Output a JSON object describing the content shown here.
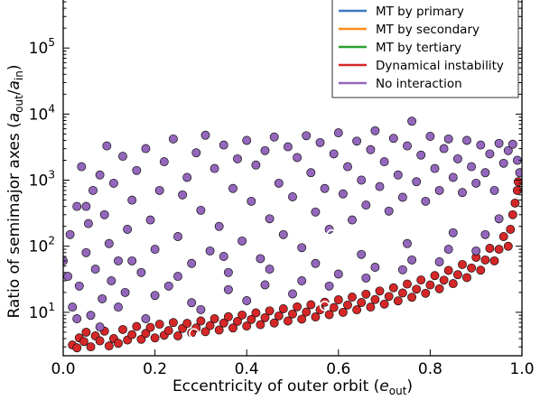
{
  "chart_data": {
    "type": "scatter",
    "title": "",
    "xlabel": "Eccentricity of outer orbit (e_out)",
    "xlabel_text": "Eccentricity of outer orbit (",
    "xlabel_var": "e",
    "xlabel_sub": "out",
    "xlabel_close": ")",
    "ylabel": "Ratio of semimajor axes (a_out/a_in)",
    "ylabel_text": "Ratio of semimajor axes (",
    "ylabel_var": "a",
    "ylabel_sub1": "out",
    "ylabel_slash": "/",
    "ylabel_sub2": "in",
    "ylabel_close": ")",
    "xlim": [
      0.0,
      1.0
    ],
    "ylim": [
      2.2,
      1000000
    ],
    "yscale": "log",
    "xticks": [
      {
        "value": 0.0,
        "label": "0.0"
      },
      {
        "value": 0.2,
        "label": "0.2"
      },
      {
        "value": 0.4,
        "label": "0.4"
      },
      {
        "value": 0.6,
        "label": "0.6"
      },
      {
        "value": 0.8,
        "label": "0.8"
      },
      {
        "value": 1.0,
        "label": "1.0"
      }
    ],
    "yticks": [
      {
        "value": 10,
        "base": "10",
        "exp": "1"
      },
      {
        "value": 100,
        "base": "10",
        "exp": "2"
      },
      {
        "value": 1000,
        "base": "10",
        "exp": "3"
      },
      {
        "value": 10000,
        "base": "10",
        "exp": "4"
      },
      {
        "value": 100000,
        "base": "10",
        "exp": "5"
      }
    ],
    "grid": false,
    "legend_position": "top-right",
    "series": [
      {
        "name": "MT by primary",
        "color": "#3a75c4",
        "points": []
      },
      {
        "name": "MT by secondary",
        "color": "#ff8c1a",
        "points": []
      },
      {
        "name": "MT by tertiary",
        "color": "#2ca02c",
        "points": []
      },
      {
        "name": "Dynamical instability",
        "color": "#d62728",
        "points": [
          [
            0.02,
            3.2
          ],
          [
            0.03,
            2.9
          ],
          [
            0.035,
            4.1
          ],
          [
            0.045,
            3.6
          ],
          [
            0.05,
            5.0
          ],
          [
            0.06,
            3.0
          ],
          [
            0.07,
            4.4
          ],
          [
            0.08,
            3.7
          ],
          [
            0.09,
            5.2
          ],
          [
            0.1,
            3.1
          ],
          [
            0.11,
            4.0
          ],
          [
            0.12,
            3.4
          ],
          [
            0.13,
            5.5
          ],
          [
            0.14,
            3.8
          ],
          [
            0.15,
            4.6
          ],
          [
            0.16,
            6.1
          ],
          [
            0.17,
            3.9
          ],
          [
            0.18,
            4.8
          ],
          [
            0.19,
            5.9
          ],
          [
            0.2,
            4.1
          ],
          [
            0.21,
            6.6
          ],
          [
            0.22,
            4.5
          ],
          [
            0.23,
            5.3
          ],
          [
            0.24,
            7.0
          ],
          [
            0.25,
            4.4
          ],
          [
            0.26,
            5.7
          ],
          [
            0.27,
            6.8
          ],
          [
            0.28,
            4.9
          ],
          [
            0.29,
            5.8
          ],
          [
            0.3,
            7.4
          ],
          [
            0.31,
            5.1
          ],
          [
            0.32,
            6.3
          ],
          [
            0.33,
            8.0
          ],
          [
            0.34,
            5.4
          ],
          [
            0.35,
            6.9
          ],
          [
            0.36,
            8.6
          ],
          [
            0.37,
            5.8
          ],
          [
            0.38,
            7.3
          ],
          [
            0.39,
            9.1
          ],
          [
            0.4,
            6.2
          ],
          [
            0.41,
            7.8
          ],
          [
            0.42,
            9.8
          ],
          [
            0.43,
            6.5
          ],
          [
            0.44,
            8.3
          ],
          [
            0.45,
            10.5
          ],
          [
            0.46,
            6.9
          ],
          [
            0.47,
            8.8
          ],
          [
            0.48,
            11.3
          ],
          [
            0.49,
            7.4
          ],
          [
            0.5,
            9.4
          ],
          [
            0.51,
            12.1
          ],
          [
            0.52,
            7.9
          ],
          [
            0.53,
            10.1
          ],
          [
            0.54,
            13.0
          ],
          [
            0.55,
            8.5
          ],
          [
            0.56,
            10.9
          ],
          [
            0.57,
            14.2
          ],
          [
            0.58,
            9.2
          ],
          [
            0.59,
            11.8
          ],
          [
            0.6,
            15.5
          ],
          [
            0.61,
            10.0
          ],
          [
            0.62,
            12.9
          ],
          [
            0.63,
            17.0
          ],
          [
            0.64,
            10.9
          ],
          [
            0.65,
            14.1
          ],
          [
            0.66,
            18.8
          ],
          [
            0.67,
            12.0
          ],
          [
            0.68,
            15.6
          ],
          [
            0.69,
            21.0
          ],
          [
            0.7,
            13.3
          ],
          [
            0.71,
            17.4
          ],
          [
            0.72,
            23.5
          ],
          [
            0.73,
            14.9
          ],
          [
            0.74,
            19.6
          ],
          [
            0.75,
            26.8
          ],
          [
            0.76,
            16.9
          ],
          [
            0.77,
            22.4
          ],
          [
            0.78,
            30.8
          ],
          [
            0.79,
            19.4
          ],
          [
            0.8,
            25.9
          ],
          [
            0.81,
            36.0
          ],
          [
            0.82,
            22.7
          ],
          [
            0.83,
            30.6
          ],
          [
            0.84,
            43.0
          ],
          [
            0.85,
            27.2
          ],
          [
            0.86,
            37.1
          ],
          [
            0.87,
            53.0
          ],
          [
            0.88,
            33.6
          ],
          [
            0.89,
            46.8
          ],
          [
            0.9,
            68.0
          ],
          [
            0.91,
            43.4
          ],
          [
            0.92,
            62.0
          ],
          [
            0.93,
            93.0
          ],
          [
            0.94,
            60.0
          ],
          [
            0.95,
            90.0
          ],
          [
            0.96,
            140.0
          ],
          [
            0.97,
            100.0
          ],
          [
            0.975,
            180.0
          ],
          [
            0.98,
            300.0
          ],
          [
            0.985,
            450.0
          ],
          [
            0.99,
            700.0
          ],
          [
            0.992,
            950.0
          ]
        ]
      },
      {
        "name": "No interaction",
        "color": "#9467bd",
        "points": [
          [
            0.0,
            60
          ],
          [
            0.01,
            35
          ],
          [
            0.015,
            150
          ],
          [
            0.02,
            12
          ],
          [
            0.03,
            400
          ],
          [
            0.035,
            25
          ],
          [
            0.04,
            1600
          ],
          [
            0.05,
            80
          ],
          [
            0.055,
            220
          ],
          [
            0.06,
            9
          ],
          [
            0.065,
            700
          ],
          [
            0.07,
            45
          ],
          [
            0.08,
            1200
          ],
          [
            0.085,
            16
          ],
          [
            0.09,
            300
          ],
          [
            0.095,
            3300
          ],
          [
            0.1,
            110
          ],
          [
            0.105,
            30
          ],
          [
            0.11,
            900
          ],
          [
            0.12,
            60
          ],
          [
            0.13,
            2300
          ],
          [
            0.135,
            20
          ],
          [
            0.14,
            180
          ],
          [
            0.15,
            500
          ],
          [
            0.16,
            1400
          ],
          [
            0.17,
            40
          ],
          [
            0.18,
            3000
          ],
          [
            0.19,
            250
          ],
          [
            0.2,
            90
          ],
          [
            0.21,
            700
          ],
          [
            0.22,
            1900
          ],
          [
            0.23,
            25
          ],
          [
            0.24,
            4200
          ],
          [
            0.25,
            140
          ],
          [
            0.26,
            600
          ],
          [
            0.27,
            1100
          ],
          [
            0.28,
            55
          ],
          [
            0.29,
            2600
          ],
          [
            0.3,
            350
          ],
          [
            0.31,
            4800
          ],
          [
            0.32,
            85
          ],
          [
            0.33,
            1500
          ],
          [
            0.34,
            200
          ],
          [
            0.35,
            3400
          ],
          [
            0.36,
            40
          ],
          [
            0.37,
            750
          ],
          [
            0.38,
            2100
          ],
          [
            0.39,
            120
          ],
          [
            0.4,
            4000
          ],
          [
            0.41,
            480
          ],
          [
            0.42,
            1700
          ],
          [
            0.43,
            65
          ],
          [
            0.44,
            2800
          ],
          [
            0.45,
            260
          ],
          [
            0.46,
            4500
          ],
          [
            0.47,
            900
          ],
          [
            0.48,
            150
          ],
          [
            0.49,
            3200
          ],
          [
            0.5,
            560
          ],
          [
            0.51,
            2200
          ],
          [
            0.52,
            95
          ],
          [
            0.53,
            4700
          ],
          [
            0.54,
            1300
          ],
          [
            0.55,
            330
          ],
          [
            0.56,
            3700
          ],
          [
            0.57,
            750
          ],
          [
            0.58,
            180
          ],
          [
            0.59,
            2500
          ],
          [
            0.6,
            5200
          ],
          [
            0.61,
            620
          ],
          [
            0.62,
            1600
          ],
          [
            0.63,
            250
          ],
          [
            0.64,
            3900
          ],
          [
            0.65,
            1000
          ],
          [
            0.66,
            420
          ],
          [
            0.67,
            2900
          ],
          [
            0.68,
            5600
          ],
          [
            0.69,
            800
          ],
          [
            0.7,
            1900
          ],
          [
            0.71,
            340
          ],
          [
            0.72,
            4300
          ],
          [
            0.73,
            1200
          ],
          [
            0.74,
            550
          ],
          [
            0.75,
            3300
          ],
          [
            0.76,
            7800
          ],
          [
            0.77,
            950
          ],
          [
            0.78,
            2400
          ],
          [
            0.79,
            480
          ],
          [
            0.8,
            4600
          ],
          [
            0.81,
            1500
          ],
          [
            0.82,
            700
          ],
          [
            0.83,
            3000
          ],
          [
            0.84,
            4200
          ],
          [
            0.85,
            1100
          ],
          [
            0.86,
            2100
          ],
          [
            0.87,
            650
          ],
          [
            0.88,
            4000
          ],
          [
            0.89,
            1600
          ],
          [
            0.9,
            900
          ],
          [
            0.91,
            3400
          ],
          [
            0.92,
            1300
          ],
          [
            0.93,
            2500
          ],
          [
            0.94,
            700
          ],
          [
            0.95,
            3600
          ],
          [
            0.96,
            1800
          ],
          [
            0.97,
            2800
          ],
          [
            0.98,
            3500
          ],
          [
            0.99,
            2000
          ],
          [
            0.995,
            1300
          ],
          [
            0.03,
            8
          ],
          [
            0.12,
            12
          ],
          [
            0.2,
            18
          ],
          [
            0.28,
            14
          ],
          [
            0.36,
            22
          ],
          [
            0.44,
            26
          ],
          [
            0.52,
            30
          ],
          [
            0.6,
            38
          ],
          [
            0.68,
            48
          ],
          [
            0.76,
            62
          ],
          [
            0.84,
            90
          ],
          [
            0.92,
            150
          ],
          [
            0.05,
            400
          ],
          [
            0.15,
            60
          ],
          [
            0.25,
            35
          ],
          [
            0.35,
            70
          ],
          [
            0.45,
            45
          ],
          [
            0.55,
            55
          ],
          [
            0.65,
            75
          ],
          [
            0.75,
            110
          ],
          [
            0.85,
            160
          ],
          [
            0.95,
            260
          ],
          [
            0.08,
            6
          ],
          [
            0.18,
            8
          ],
          [
            0.3,
            11
          ],
          [
            0.4,
            15
          ],
          [
            0.5,
            19
          ],
          [
            0.58,
            25
          ],
          [
            0.66,
            33
          ],
          [
            0.74,
            44
          ],
          [
            0.82,
            58
          ],
          [
            0.9,
            85
          ]
        ]
      }
    ],
    "highlighted_points": [
      {
        "x": 0.585,
        "y": 150
      },
      {
        "x": 0.57,
        "y": 12.5
      },
      {
        "x": 0.285,
        "y": 4.8
      }
    ]
  }
}
